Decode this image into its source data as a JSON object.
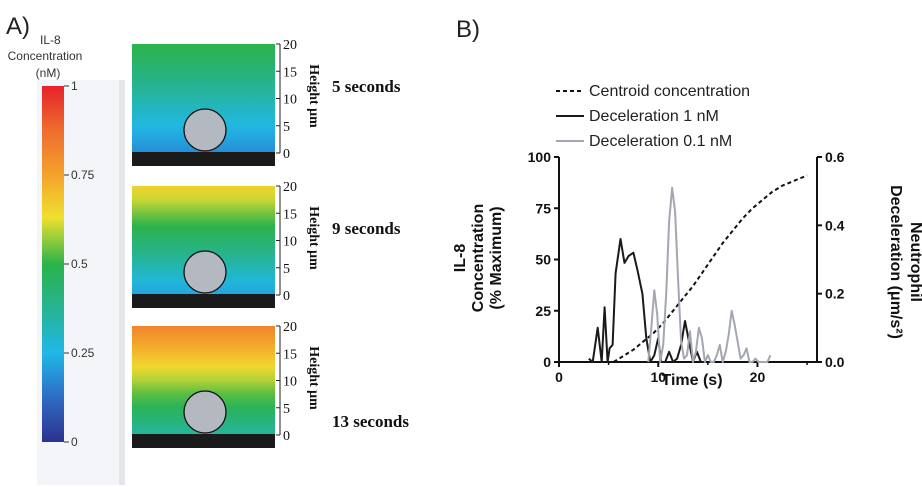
{
  "panel_a": {
    "label": "A)",
    "colorbar": {
      "title_line1": "IL-8",
      "title_line2": "Concentration",
      "title_line3": "(nM)",
      "ticks": [
        "1",
        "0.75",
        "0.5",
        "0.25",
        "0"
      ]
    },
    "height_axis": {
      "label": "Height μm",
      "ticks": [
        "20",
        "15",
        "10",
        "5",
        "0"
      ]
    },
    "snapshots": [
      {
        "time_label": "5 seconds",
        "concentration_bottom": 0.18,
        "concentration_top": 0.5
      },
      {
        "time_label": "9 seconds",
        "concentration_bottom": 0.22,
        "concentration_top": 0.66
      },
      {
        "time_label": "13 seconds",
        "concentration_bottom": 0.36,
        "concentration_top": 0.82
      }
    ],
    "colors": {
      "cell_fill": "#b4b9c1",
      "substrate": "#1a1a1a"
    }
  },
  "chart_data": {
    "label": "B)",
    "type": "line",
    "xlabel": "Time (s)",
    "ylabel_left": [
      "IL-8",
      "Concentration",
      "(% Maximum)"
    ],
    "ylabel_right": [
      "Neutrophil",
      "Deceleration (μm/s²)"
    ],
    "xlim": [
      0,
      26
    ],
    "ylim_left": [
      0,
      100
    ],
    "ylim_right": [
      0,
      0.6
    ],
    "xticks": [
      "0",
      "10",
      "20"
    ],
    "yticks_left": [
      "0",
      "25",
      "50",
      "75",
      "100"
    ],
    "yticks_right": [
      "0.0",
      "0.2",
      "0.4",
      "0.6"
    ],
    "legend_position": "top",
    "series": [
      {
        "name": "Centroid concentration",
        "axis": "left",
        "style": "dashed",
        "color": "#111111",
        "x": [
          5.5,
          6.5,
          7.5,
          8.5,
          9.5,
          10.5,
          11.5,
          12.5,
          13.5,
          14.5,
          15.5,
          16.5,
          17.5,
          18.5,
          19.5,
          20.5,
          21.5,
          22.5,
          23.5,
          24.5,
          25
        ],
        "y": [
          0,
          3,
          6,
          10,
          14,
          19,
          25,
          31,
          37,
          44,
          51,
          58,
          64,
          70,
          75,
          79,
          83,
          86,
          88,
          90,
          91
        ]
      },
      {
        "name": "Deceleration 1 nM",
        "axis": "right",
        "style": "solid",
        "color": "#1a1a1a",
        "x": [
          3,
          3.4,
          3.9,
          4.3,
          4.6,
          4.9,
          5.1,
          5.4,
          5.7,
          6.2,
          6.6,
          7.0,
          7.5,
          7.9,
          8.4,
          8.8,
          9.2,
          9.6,
          10.0,
          10.3,
          10.7,
          11.1,
          11.5,
          11.9,
          12.3,
          12.7,
          13.1,
          13.5,
          13.9,
          14.3,
          14.7
        ],
        "y": [
          0.01,
          0.0,
          0.1,
          0.0,
          0.16,
          0.0,
          0.04,
          0.05,
          0.26,
          0.36,
          0.29,
          0.31,
          0.32,
          0.27,
          0.2,
          0.07,
          0.0,
          0.02,
          0.07,
          0.0,
          0.0,
          0.03,
          0.0,
          0.01,
          0.05,
          0.12,
          0.06,
          0.0,
          0.03,
          0.0,
          0.0
        ]
      },
      {
        "name": "Deceleration 0.1 nM",
        "axis": "right",
        "style": "solid",
        "color": "#a2a7b1",
        "x": [
          9.0,
          9.3,
          9.6,
          9.9,
          10.2,
          10.5,
          10.8,
          11.1,
          11.4,
          11.7,
          12.0,
          12.3,
          12.6,
          12.9,
          13.2,
          13.5,
          13.8,
          14.1,
          14.4,
          14.7,
          15.0,
          15.3,
          15.6,
          15.9,
          16.2,
          16.5,
          16.8,
          17.1,
          17.4,
          17.7,
          18.0,
          18.3,
          18.6,
          18.9,
          19.2,
          19.5,
          19.8,
          20.1,
          20.4,
          20.7,
          21.0,
          21.3
        ],
        "y": [
          0.0,
          0.1,
          0.21,
          0.14,
          0.0,
          0.05,
          0.2,
          0.41,
          0.51,
          0.44,
          0.24,
          0.06,
          0.01,
          0.02,
          0.09,
          0.0,
          0.03,
          0.1,
          0.07,
          0.0,
          0.02,
          0.0,
          0.0,
          0.02,
          0.05,
          0.0,
          0.03,
          0.08,
          0.15,
          0.11,
          0.06,
          0.01,
          0.02,
          0.04,
          0.0,
          0.0,
          0.01,
          0.0,
          0.0,
          0.0,
          0.0,
          0.02
        ]
      }
    ]
  }
}
